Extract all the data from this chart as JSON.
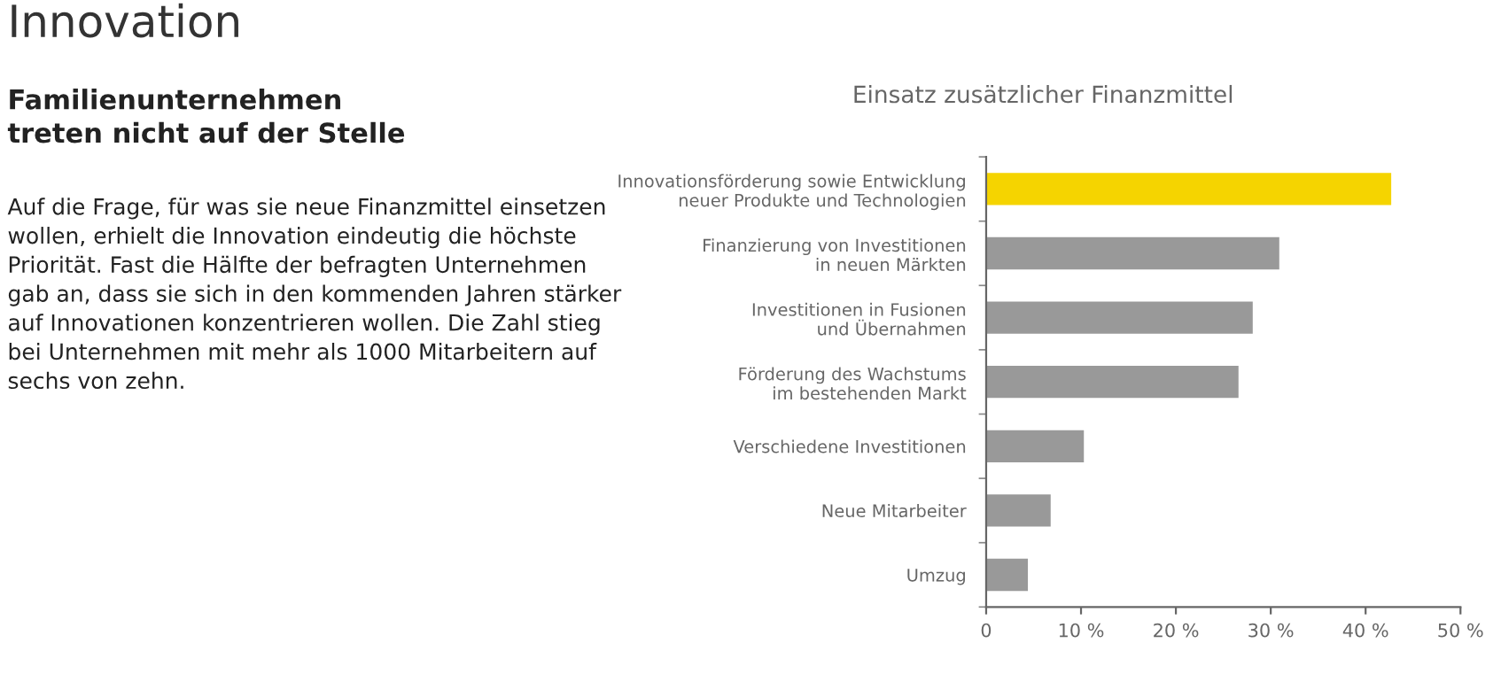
{
  "chart_data": {
    "type": "bar",
    "orientation": "horizontal",
    "title": "Einsatz zusätzlicher Finanzmittel",
    "annotations": [
      "Innovation",
      "Familienunternehmen\ntreten nicht auf der Stelle",
      "Auf die Frage, für was sie neue Finanzmittel einsetzen\nwollen, erhielt die Innovation eindeutig die höchste\nPriorität. Fast die Hälfte der befragten Unternehmen\ngab an, dass sie sich in den kommenden Jahren stärker\nauf Innovationen konzentrieren wollen. Die Zahl stieg\nbei Unternehmen mit mehr als 1000 Mitarbeitern auf\nsechs von zehn."
    ],
    "categories": [
      "Innovationsförderung sowie Entwicklung\nneuer Produkte und Technologien",
      "Finanzierung von Investitionen\nin neuen Märkten",
      "Investitionen in Fusionen\nund Übernahmen",
      "Förderung des Wachstums\nim bestehenden Markt",
      "Verschiedene Investitionen",
      "Neue Mitarbeiter",
      "Umzug"
    ],
    "values": [
      42.7,
      30.9,
      28.1,
      26.6,
      10.3,
      6.8,
      4.4
    ],
    "colors": [
      "#f5d400",
      "#999999",
      "#999999",
      "#999999",
      "#999999",
      "#999999",
      "#999999"
    ],
    "xlim": [
      0,
      50
    ],
    "xticks": [
      0,
      {
        "value": 10,
        "label": "10 %"
      },
      {
        "value": 20,
        "label": "20 %"
      },
      {
        "value": 30,
        "label": "30 %"
      },
      {
        "value": 40,
        "label": "40 %"
      },
      {
        "value": 50,
        "label": "50 %"
      }
    ],
    "grid": false
  }
}
